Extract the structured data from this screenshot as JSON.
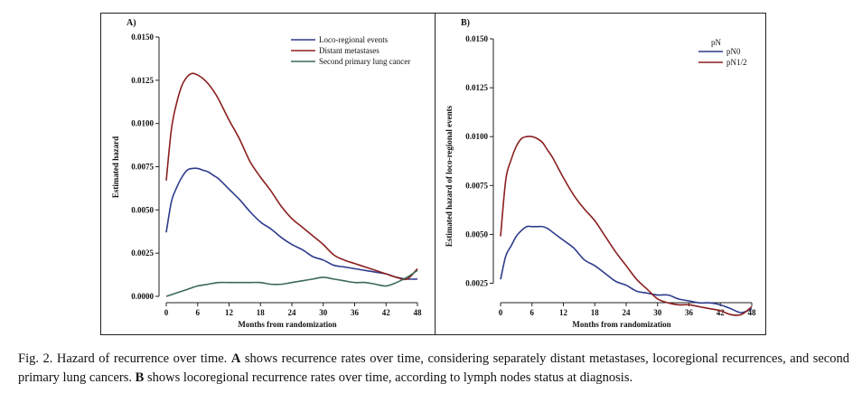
{
  "chart_data": [
    {
      "type": "line",
      "panel_label": "A)",
      "title": "",
      "xlabel": "Months from randomization",
      "ylabel": "Estimated hazard",
      "xlim": [
        0,
        48
      ],
      "ylim": [
        0,
        0.015
      ],
      "x_ticks": [
        0,
        6,
        12,
        18,
        24,
        30,
        36,
        42,
        48
      ],
      "y_ticks": [
        0.0,
        0.0025,
        0.005,
        0.0075,
        0.01,
        0.0125,
        0.015
      ],
      "y_tick_labels": [
        "0.0000",
        "0.0025",
        "0.0050",
        "0.0075",
        "0.0100",
        "0.0125",
        "0.0150"
      ],
      "legend_position": "top-right",
      "series": [
        {
          "name": "Loco-regional events",
          "color": "#2e3a8c",
          "x": [
            0,
            1,
            2,
            3,
            4,
            5,
            6,
            7,
            8,
            9,
            10,
            12,
            14,
            16,
            18,
            20,
            22,
            24,
            26,
            28,
            30,
            32,
            34,
            36,
            38,
            40,
            42,
            44,
            46,
            48
          ],
          "y": [
            0.0037,
            0.0055,
            0.0063,
            0.0069,
            0.0073,
            0.0074,
            0.0074,
            0.0073,
            0.0072,
            0.007,
            0.0068,
            0.0062,
            0.0056,
            0.0049,
            0.0043,
            0.0039,
            0.0034,
            0.003,
            0.0027,
            0.0023,
            0.0021,
            0.0018,
            0.0017,
            0.0016,
            0.0015,
            0.0014,
            0.0013,
            0.0011,
            0.001,
            0.001
          ]
        },
        {
          "name": "Distant metastases",
          "color": "#8b1f1f",
          "x": [
            0,
            1,
            2,
            3,
            4,
            5,
            6,
            7,
            8,
            9,
            10,
            12,
            14,
            16,
            18,
            20,
            22,
            24,
            26,
            28,
            30,
            32,
            34,
            36,
            38,
            40,
            42,
            44,
            46,
            48
          ],
          "y": [
            0.0067,
            0.0097,
            0.0112,
            0.0122,
            0.0127,
            0.0129,
            0.0128,
            0.0126,
            0.0123,
            0.0119,
            0.0114,
            0.0102,
            0.0091,
            0.0078,
            0.0069,
            0.0061,
            0.0052,
            0.0045,
            0.004,
            0.0035,
            0.003,
            0.0024,
            0.0021,
            0.0019,
            0.0017,
            0.0015,
            0.0013,
            0.0011,
            0.001,
            0.0016
          ]
        },
        {
          "name": "Second primary lung cancer",
          "color": "#3a6a54",
          "x": [
            0,
            2,
            4,
            6,
            8,
            10,
            12,
            14,
            16,
            18,
            20,
            22,
            24,
            26,
            28,
            30,
            32,
            34,
            36,
            38,
            40,
            42,
            44,
            46,
            48
          ],
          "y": [
            0.0,
            0.0002,
            0.0004,
            0.0006,
            0.0007,
            0.0008,
            0.0008,
            0.0008,
            0.0008,
            0.0008,
            0.0007,
            0.0007,
            0.0008,
            0.0009,
            0.001,
            0.0011,
            0.001,
            0.0009,
            0.0008,
            0.0008,
            0.0007,
            0.0006,
            0.0008,
            0.0011,
            0.0015
          ]
        }
      ]
    },
    {
      "type": "line",
      "panel_label": "B)",
      "title": "",
      "xlabel": "Months from randomization",
      "ylabel": "Estimated hazard of loco-regional events",
      "xlim": [
        0,
        48
      ],
      "ylim": [
        0.001,
        0.015
      ],
      "x_ticks": [
        0,
        6,
        12,
        18,
        24,
        30,
        36,
        42,
        48
      ],
      "y_ticks": [
        0.0025,
        0.005,
        0.0075,
        0.01,
        0.0125,
        0.015
      ],
      "y_tick_labels": [
        "0.0025",
        "0.0050",
        "0.0075",
        "0.0100",
        "0.0125",
        "0.0150"
      ],
      "legend_title": "pN",
      "legend_position": "top-right",
      "series": [
        {
          "name": "pN0",
          "color": "#2e3a8c",
          "x": [
            0,
            1,
            2,
            3,
            4,
            5,
            6,
            7,
            8,
            9,
            10,
            12,
            14,
            16,
            18,
            20,
            22,
            24,
            26,
            28,
            30,
            32,
            34,
            36,
            38,
            40,
            42,
            44,
            46,
            48
          ],
          "y": [
            0.0027,
            0.0039,
            0.0044,
            0.0049,
            0.0052,
            0.0054,
            0.0054,
            0.0054,
            0.0054,
            0.0053,
            0.0051,
            0.0047,
            0.0043,
            0.0037,
            0.0034,
            0.003,
            0.0026,
            0.0024,
            0.0021,
            0.002,
            0.0019,
            0.0019,
            0.0017,
            0.0016,
            0.0015,
            0.0015,
            0.0014,
            0.0012,
            0.001,
            0.0012
          ]
        },
        {
          "name": "pN1/2",
          "color": "#8b1f1f",
          "x": [
            0,
            1,
            2,
            3,
            4,
            5,
            6,
            7,
            8,
            9,
            10,
            12,
            14,
            16,
            18,
            20,
            22,
            24,
            26,
            28,
            30,
            32,
            34,
            36,
            38,
            40,
            42,
            44,
            46,
            48
          ],
          "y": [
            0.0049,
            0.0078,
            0.0088,
            0.0095,
            0.0099,
            0.01,
            0.01,
            0.0099,
            0.0097,
            0.0093,
            0.0089,
            0.0079,
            0.007,
            0.0063,
            0.0057,
            0.0049,
            0.0041,
            0.0034,
            0.0027,
            0.0022,
            0.0017,
            0.0015,
            0.0014,
            0.0014,
            0.0013,
            0.0012,
            0.0011,
            0.0009,
            0.0009,
            0.0013
          ]
        }
      ]
    }
  ],
  "caption": {
    "prefix": "Fig. 2. Hazard of recurrence over time. ",
    "a_label": "A",
    "a_text": " shows recurrence rates over time, considering separately distant metastases, locoregional recurrences, and second primary lung cancers. ",
    "b_label": "B",
    "b_text": " shows locoregional recurrence rates over time, according to lymph nodes status at diagnosis."
  }
}
